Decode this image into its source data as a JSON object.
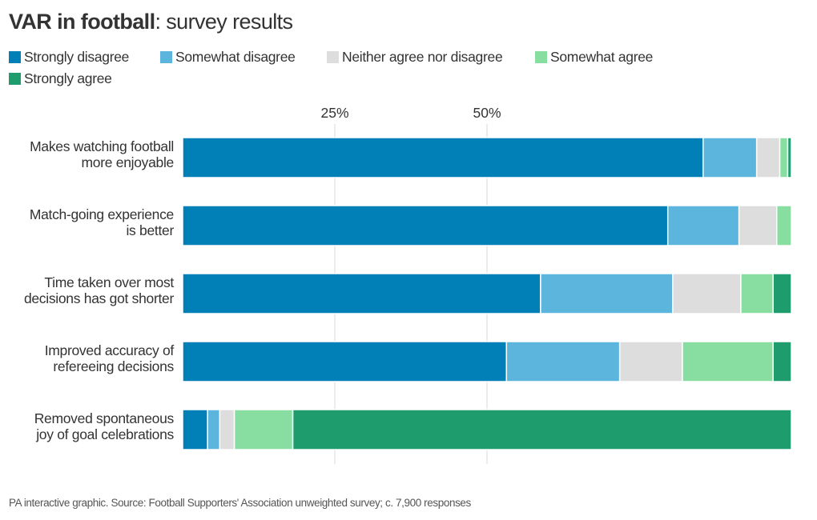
{
  "title": {
    "bold": "VAR in football",
    "rest": ": survey results"
  },
  "footer": "PA interactive graphic. Source: Football Supporters' Association unweighted survey; c. 7,900 responses",
  "colors": {
    "Strongly disagree": "#0080b7",
    "Somewhat disagree": "#5bb5dc",
    "Neither agree nor disagree": "#dddddd",
    "Somewhat agree": "#88dda0",
    "Strongly agree": "#1e9c6e",
    "gridline": "#d9d9d9"
  },
  "chart_data": {
    "type": "bar",
    "orientation": "horizontal",
    "stacked": true,
    "title": "VAR in football: survey results",
    "xlabel": "",
    "ylabel": "",
    "xlim": [
      0,
      100
    ],
    "xticks": [
      25,
      50
    ],
    "xtick_labels": [
      "25%",
      "50%"
    ],
    "grid": true,
    "legend_position": "top-left",
    "categories": [
      [
        "Makes watching football",
        "more enjoyable"
      ],
      [
        "Match-going experience",
        "is better"
      ],
      [
        "Time taken over most",
        "decisions has got shorter"
      ],
      [
        "Improved accuracy of",
        "refereeing decisions"
      ],
      [
        "Removed spontaneous",
        "joy of goal celebrations"
      ]
    ],
    "series": [
      {
        "name": "Strongly disagree",
        "values": [
          85.5,
          79.7,
          58.8,
          53.2,
          4.1
        ]
      },
      {
        "name": "Somewhat disagree",
        "values": [
          8.8,
          11.7,
          21.7,
          18.6,
          2.0
        ]
      },
      {
        "name": "Neither agree nor disagree",
        "values": [
          3.8,
          6.2,
          11.2,
          10.3,
          2.4
        ]
      },
      {
        "name": "Somewhat agree",
        "values": [
          1.3,
          2.4,
          5.3,
          14.9,
          9.6
        ]
      },
      {
        "name": "Strongly agree",
        "values": [
          0.6,
          0.0,
          3.0,
          3.0,
          81.9
        ]
      }
    ]
  }
}
